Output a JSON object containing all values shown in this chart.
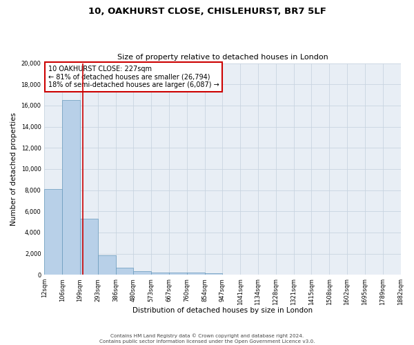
{
  "title": "10, OAKHURST CLOSE, CHISLEHURST, BR7 5LF",
  "subtitle": "Size of property relative to detached houses in London",
  "xlabel": "Distribution of detached houses by size in London",
  "ylabel": "Number of detached properties",
  "bin_labels": [
    "12sqm",
    "106sqm",
    "199sqm",
    "293sqm",
    "386sqm",
    "480sqm",
    "573sqm",
    "667sqm",
    "760sqm",
    "854sqm",
    "947sqm",
    "1041sqm",
    "1134sqm",
    "1228sqm",
    "1321sqm",
    "1415sqm",
    "1508sqm",
    "1602sqm",
    "1695sqm",
    "1789sqm",
    "1882sqm"
  ],
  "bar_values": [
    8100,
    16500,
    5300,
    1850,
    700,
    320,
    230,
    200,
    180,
    160,
    0,
    0,
    0,
    0,
    0,
    0,
    0,
    0,
    0,
    0
  ],
  "bar_color": "#b8d0e8",
  "bar_edge_color": "#6699bb",
  "vline_color": "#cc0000",
  "annotation_text": "10 OAKHURST CLOSE: 227sqm\n← 81% of detached houses are smaller (26,794)\n18% of semi-detached houses are larger (6,087) →",
  "annotation_box_color": "#ffffff",
  "annotation_box_edge": "#cc0000",
  "ylim": [
    0,
    20000
  ],
  "yticks": [
    0,
    2000,
    4000,
    6000,
    8000,
    10000,
    12000,
    14000,
    16000,
    18000,
    20000
  ],
  "bg_color": "#e8eef5",
  "footnote": "Contains HM Land Registry data © Crown copyright and database right 2024.\nContains public sector information licensed under the Open Government Licence v3.0."
}
